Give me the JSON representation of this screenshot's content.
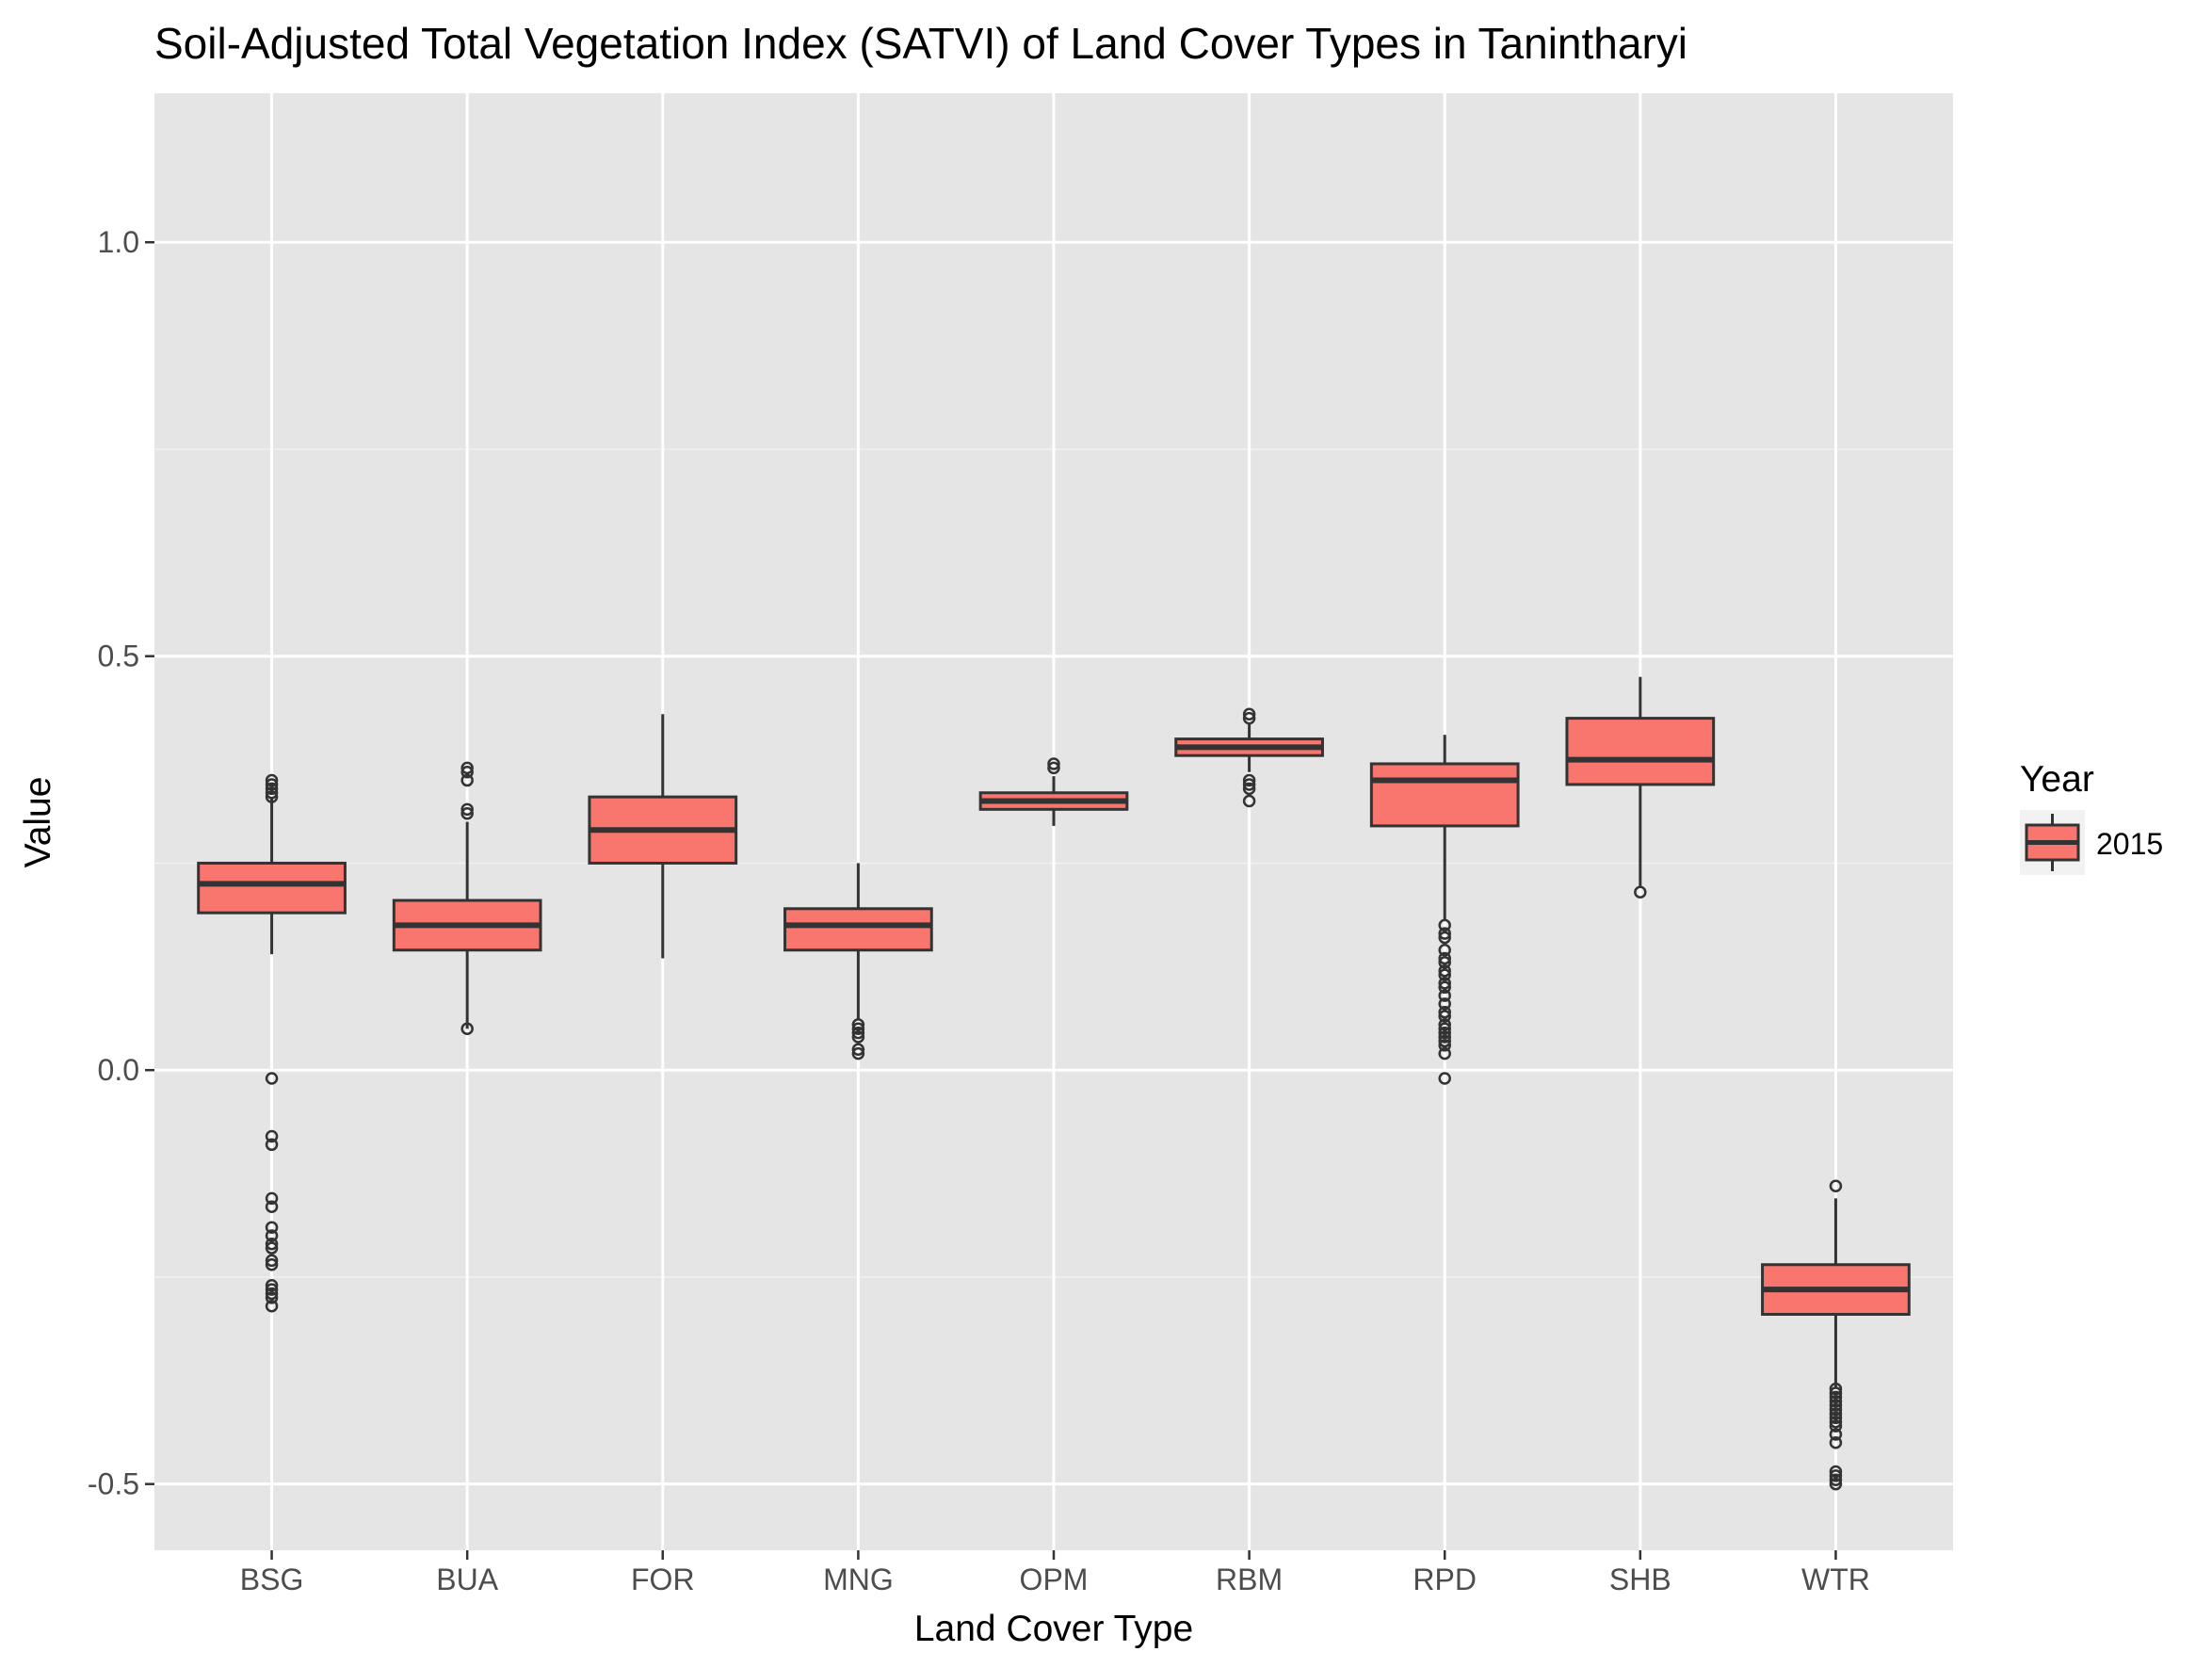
{
  "chart_data": {
    "type": "box",
    "title": "Soil-Adjusted Total Vegetation Index (SATVI) of Land Cover Types in Tanintharyi",
    "xlabel": "Land Cover Type",
    "ylabel": "Value",
    "ylim": [
      -0.58,
      1.18
    ],
    "yticks": [
      -0.5,
      0.0,
      0.5,
      1.0
    ],
    "ytick_labels": [
      "-0.5",
      "0.0",
      "0.5",
      "1.0"
    ],
    "grid": true,
    "legend": {
      "title": "Year",
      "placement": "right",
      "entries": [
        "2015"
      ]
    },
    "fill_color": "#F8766D",
    "panel_color": "#E5E5E5",
    "categories": [
      "BSG",
      "BUA",
      "FOR",
      "MNG",
      "OPM",
      "RBM",
      "RPD",
      "SHB",
      "WTR"
    ],
    "series": [
      {
        "name": "2015",
        "boxes": [
          {
            "category": "BSG",
            "whisker_low": 0.14,
            "q1": 0.19,
            "median": 0.225,
            "q3": 0.25,
            "whisker_high": 0.33,
            "outliers": [
              0.34,
              0.345,
              0.35,
              0.335,
              0.33,
              -0.01,
              -0.08,
              -0.09,
              -0.155,
              -0.165,
              -0.19,
              -0.2,
              -0.21,
              -0.215,
              -0.23,
              -0.235,
              -0.26,
              -0.265,
              -0.27,
              -0.275,
              -0.285
            ]
          },
          {
            "category": "BUA",
            "whisker_low": 0.05,
            "q1": 0.145,
            "median": 0.175,
            "q3": 0.205,
            "whisker_high": 0.3,
            "outliers": [
              0.31,
              0.315,
              0.35,
              0.36,
              0.365,
              0.05
            ]
          },
          {
            "category": "FOR",
            "whisker_low": 0.135,
            "q1": 0.25,
            "median": 0.29,
            "q3": 0.33,
            "whisker_high": 0.43,
            "outliers": []
          },
          {
            "category": "MNG",
            "whisker_low": 0.06,
            "q1": 0.145,
            "median": 0.175,
            "q3": 0.195,
            "whisker_high": 0.25,
            "outliers": [
              0.055,
              0.05,
              0.045,
              0.04,
              0.025,
              0.02
            ]
          },
          {
            "category": "OPM",
            "whisker_low": 0.295,
            "q1": 0.315,
            "median": 0.325,
            "q3": 0.335,
            "whisker_high": 0.355,
            "outliers": [
              0.365,
              0.37
            ]
          },
          {
            "category": "RBM",
            "whisker_low": 0.36,
            "q1": 0.38,
            "median": 0.39,
            "q3": 0.4,
            "whisker_high": 0.42,
            "outliers": [
              0.425,
              0.43,
              0.35,
              0.345,
              0.34,
              0.325
            ]
          },
          {
            "category": "RPD",
            "whisker_low": 0.18,
            "q1": 0.295,
            "median": 0.35,
            "q3": 0.37,
            "whisker_high": 0.405,
            "outliers": [
              0.175,
              0.165,
              0.16,
              0.145,
              0.135,
              0.13,
              0.12,
              0.115,
              0.105,
              0.1,
              0.09,
              0.08,
              0.07,
              0.065,
              0.055,
              0.05,
              0.045,
              0.04,
              0.035,
              0.03,
              0.02,
              -0.01
            ]
          },
          {
            "category": "SHB",
            "whisker_low": 0.22,
            "q1": 0.345,
            "median": 0.375,
            "q3": 0.425,
            "whisker_high": 0.475,
            "outliers": [
              0.215
            ]
          },
          {
            "category": "WTR",
            "whisker_low": -0.385,
            "q1": -0.295,
            "median": -0.265,
            "q3": -0.235,
            "whisker_high": -0.155,
            "outliers": [
              -0.14,
              -0.385,
              -0.39,
              -0.395,
              -0.4,
              -0.405,
              -0.41,
              -0.415,
              -0.42,
              -0.425,
              -0.43,
              -0.44,
              -0.45,
              -0.485,
              -0.49,
              -0.495,
              -0.5
            ]
          }
        ]
      }
    ]
  }
}
